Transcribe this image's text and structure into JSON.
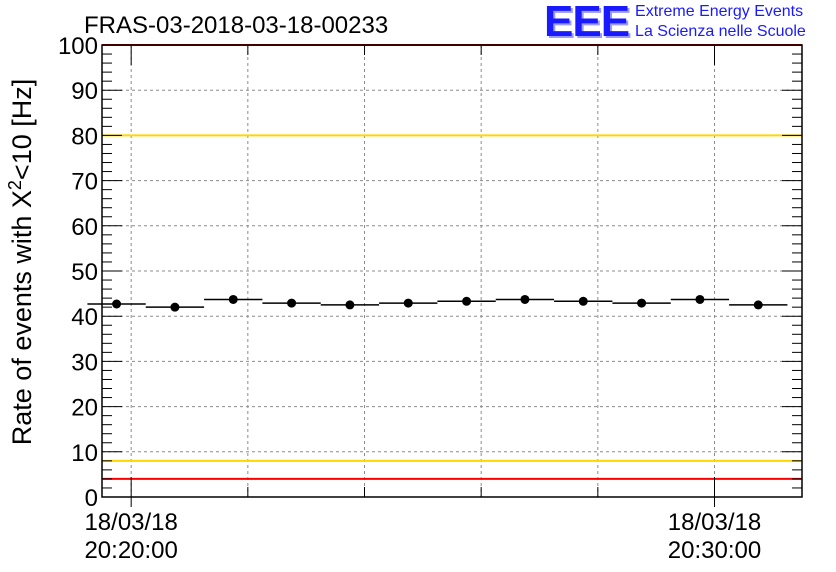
{
  "chart_data": {
    "type": "scatter",
    "title": "FRAS-03-2018-03-18-00233",
    "ylabel": "Rate of events with X",
    "ylabel_sup": "2",
    "ylabel_tail": "<10 [Hz]",
    "ylim": [
      0,
      100
    ],
    "y_ticks": [
      0,
      10,
      20,
      30,
      40,
      50,
      60,
      70,
      80,
      90,
      100
    ],
    "xlim_minutes": [
      -0.5,
      11.5
    ],
    "x_tick_minutes": [
      0,
      10
    ],
    "x_tick_labels": [
      {
        "date": "18/03/18",
        "time": "20:20:00"
      },
      {
        "date": "18/03/18",
        "time": "20:30:00"
      }
    ],
    "grid": true,
    "series": [
      {
        "name": "rate",
        "bin_width_minutes": 1,
        "x": [
          -0.25,
          0.75,
          1.75,
          2.75,
          3.75,
          4.75,
          5.75,
          6.75,
          7.75,
          8.75,
          9.75,
          10.75
        ],
        "values": [
          42.7,
          42.0,
          43.7,
          42.9,
          42.5,
          42.9,
          43.3,
          43.7,
          43.3,
          42.9,
          43.7,
          42.5
        ]
      }
    ],
    "reference_lines": [
      {
        "name": "red-upper-limit",
        "y": 100,
        "color": "#ff0000"
      },
      {
        "name": "yellow-upper-limit",
        "y": 80,
        "color": "#ffd700"
      },
      {
        "name": "yellow-lower-limit",
        "y": 8,
        "color": "#ffd700"
      },
      {
        "name": "red-lower-limit",
        "y": 4,
        "color": "#ff0000"
      }
    ]
  },
  "logo": {
    "mark": "EEE",
    "line1": "Extreme Energy Events",
    "line2": "La Scienza nelle Scuole",
    "color": "#1a1aff"
  }
}
